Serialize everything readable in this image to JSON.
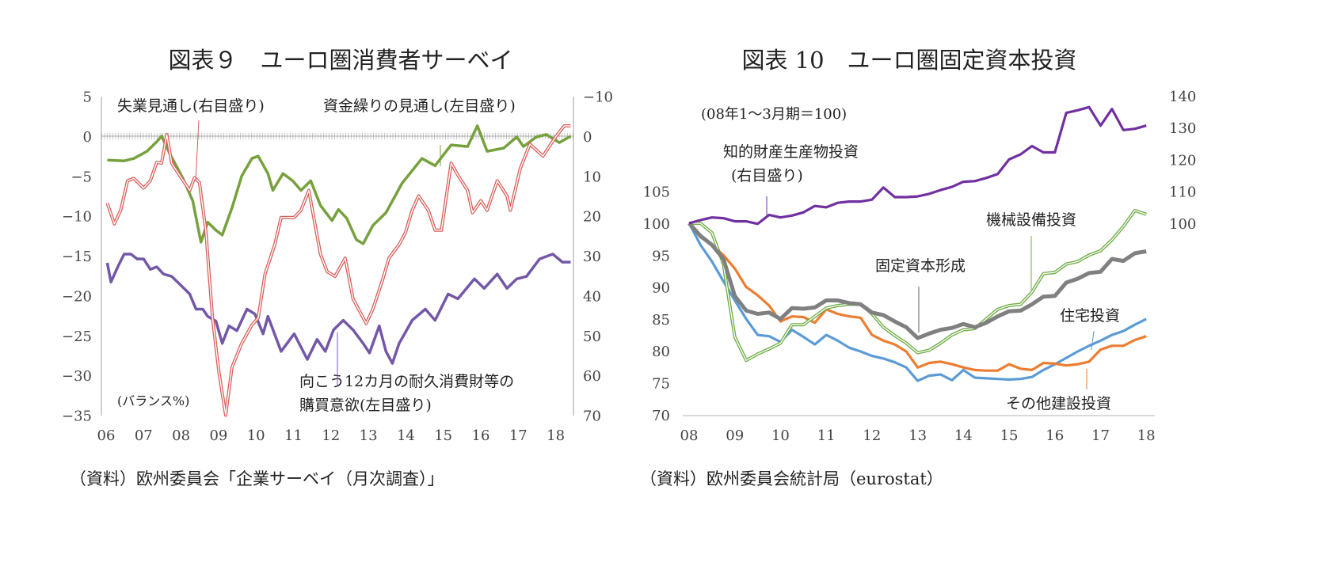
{
  "colors": {
    "green1": "#76a13d",
    "red1": "#d6615c",
    "purple1": "#7458a8",
    "purple2": "#7030a0",
    "gray2": "#808080",
    "green2": "#70ad47",
    "orange2": "#ed7d31",
    "blue2": "#5b9bd5",
    "axis": "#bfbfbf"
  },
  "chart_data": [
    {
      "type": "line",
      "title": "図表９　ユーロ圏消費者サーベイ",
      "source": "（資料）欧州委員会「企業サーベイ（月次調査）」",
      "unit_label": "(バランス%)",
      "x_ticks": [
        "06",
        "07",
        "08",
        "09",
        "10",
        "11",
        "12",
        "13",
        "14",
        "15",
        "16",
        "17",
        "18"
      ],
      "y_left": {
        "range": [
          -35,
          5
        ],
        "ticks": [
          5,
          0,
          -5,
          -10,
          -15,
          -20,
          -25,
          -30,
          -35
        ]
      },
      "y_right": {
        "range": [
          -10,
          70
        ],
        "inverted": true,
        "ticks": [
          -10,
          0,
          10,
          20,
          30,
          40,
          50,
          60,
          70
        ]
      },
      "grid": false,
      "zero_line": "dotted",
      "series": [
        {
          "name": "資金繰りの見通し(左目盛り)",
          "axis": "left",
          "color_key": "green1",
          "points": [
            [
              2006.03,
              -3.0
            ],
            [
              2006.48,
              -3.1
            ],
            [
              2006.74,
              -2.8
            ],
            [
              2007.09,
              -1.9
            ],
            [
              2007.35,
              -0.7
            ],
            [
              2007.48,
              0
            ],
            [
              2007.7,
              -2.2
            ],
            [
              2008.05,
              -5.3
            ],
            [
              2008.31,
              -8.1
            ],
            [
              2008.53,
              -13.3
            ],
            [
              2008.71,
              -10.8
            ],
            [
              2008.93,
              -11.8
            ],
            [
              2009.1,
              -12.4
            ],
            [
              2009.36,
              -9.0
            ],
            [
              2009.62,
              -5.0
            ],
            [
              2009.89,
              -2.8
            ],
            [
              2010.06,
              -2.5
            ],
            [
              2010.32,
              -4.7
            ],
            [
              2010.45,
              -6.8
            ],
            [
              2010.72,
              -4.7
            ],
            [
              2010.98,
              -5.6
            ],
            [
              2011.2,
              -6.8
            ],
            [
              2011.46,
              -5.6
            ],
            [
              2011.72,
              -8.7
            ],
            [
              2012.03,
              -10.6
            ],
            [
              2012.2,
              -9.2
            ],
            [
              2012.42,
              -10.3
            ],
            [
              2012.68,
              -13.0
            ],
            [
              2012.86,
              -13.5
            ],
            [
              2013.12,
              -11.2
            ],
            [
              2013.47,
              -9.6
            ],
            [
              2013.9,
              -5.9
            ],
            [
              2014.43,
              -2.8
            ],
            [
              2014.78,
              -3.7
            ],
            [
              2015.21,
              -1.1
            ],
            [
              2015.65,
              -1.3
            ],
            [
              2015.91,
              1.3
            ],
            [
              2016.17,
              -1.9
            ],
            [
              2016.61,
              -1.5
            ],
            [
              2016.96,
              -0.1
            ],
            [
              2017.14,
              -1.3
            ],
            [
              2017.48,
              -0.1
            ],
            [
              2017.75,
              0.2
            ],
            [
              2018.1,
              -0.8
            ],
            [
              2018.4,
              0
            ]
          ]
        },
        {
          "name": "失業見通し(右目盛り)",
          "axis": "right",
          "color_key": "red1",
          "points": [
            [
              2006.03,
              16.8
            ],
            [
              2006.22,
              22.0
            ],
            [
              2006.39,
              18.6
            ],
            [
              2006.57,
              11.2
            ],
            [
              2006.74,
              10.6
            ],
            [
              2007.0,
              13.0
            ],
            [
              2007.18,
              11.2
            ],
            [
              2007.35,
              6.6
            ],
            [
              2007.48,
              6.8
            ],
            [
              2007.62,
              -0.4
            ],
            [
              2007.75,
              6.8
            ],
            [
              2007.97,
              10.0
            ],
            [
              2008.23,
              13.6
            ],
            [
              2008.36,
              10.4
            ],
            [
              2008.49,
              11.6
            ],
            [
              2008.66,
              23.6
            ],
            [
              2008.84,
              45.6
            ],
            [
              2009.01,
              59.2
            ],
            [
              2009.19,
              70.0
            ],
            [
              2009.36,
              58.0
            ],
            [
              2009.62,
              52.0
            ],
            [
              2009.89,
              47.4
            ],
            [
              2010.06,
              45.6
            ],
            [
              2010.24,
              34.6
            ],
            [
              2010.5,
              27.2
            ],
            [
              2010.67,
              20.4
            ],
            [
              2011.02,
              20.4
            ],
            [
              2011.2,
              18.6
            ],
            [
              2011.41,
              13.6
            ],
            [
              2011.72,
              29.6
            ],
            [
              2011.9,
              34.0
            ],
            [
              2012.11,
              35.2
            ],
            [
              2012.38,
              30.6
            ],
            [
              2012.59,
              40.8
            ],
            [
              2012.94,
              47.0
            ],
            [
              2013.12,
              43.4
            ],
            [
              2013.38,
              36.0
            ],
            [
              2013.55,
              30.6
            ],
            [
              2013.82,
              27.2
            ],
            [
              2013.99,
              24.2
            ],
            [
              2014.17,
              18.6
            ],
            [
              2014.34,
              15.0
            ],
            [
              2014.6,
              18.6
            ],
            [
              2014.78,
              23.6
            ],
            [
              2014.95,
              23.6
            ],
            [
              2015.21,
              6.8
            ],
            [
              2015.39,
              9.8
            ],
            [
              2015.65,
              13.6
            ],
            [
              2015.78,
              19.2
            ],
            [
              2016.0,
              16.2
            ],
            [
              2016.17,
              18.6
            ],
            [
              2016.44,
              11.2
            ],
            [
              2016.7,
              15.0
            ],
            [
              2016.79,
              18.6
            ],
            [
              2017.05,
              8.2
            ],
            [
              2017.31,
              2.0
            ],
            [
              2017.66,
              5.0
            ],
            [
              2018.01,
              0
            ],
            [
              2018.23,
              -2.6
            ],
            [
              2018.4,
              -2.6
            ]
          ]
        },
        {
          "name": "向こう12カ月の耐久消費財等の購買意欲(左目盛り)",
          "axis": "left",
          "color_key": "purple1",
          "points": [
            [
              2006.03,
              -15.9
            ],
            [
              2006.13,
              -18.3
            ],
            [
              2006.31,
              -16.4
            ],
            [
              2006.48,
              -14.8
            ],
            [
              2006.66,
              -14.8
            ],
            [
              2006.83,
              -15.4
            ],
            [
              2007.0,
              -15.4
            ],
            [
              2007.18,
              -16.7
            ],
            [
              2007.35,
              -16.4
            ],
            [
              2007.53,
              -17.3
            ],
            [
              2007.75,
              -17.6
            ],
            [
              2007.97,
              -18.6
            ],
            [
              2008.23,
              -19.8
            ],
            [
              2008.4,
              -21.7
            ],
            [
              2008.58,
              -21.7
            ],
            [
              2008.71,
              -22.6
            ],
            [
              2008.93,
              -23.2
            ],
            [
              2009.1,
              -26.0
            ],
            [
              2009.28,
              -23.8
            ],
            [
              2009.49,
              -24.4
            ],
            [
              2009.76,
              -21.7
            ],
            [
              2009.97,
              -22.3
            ],
            [
              2010.19,
              -24.8
            ],
            [
              2010.32,
              -22.6
            ],
            [
              2010.67,
              -27.0
            ],
            [
              2011.02,
              -24.8
            ],
            [
              2011.37,
              -28.0
            ],
            [
              2011.63,
              -25.5
            ],
            [
              2011.85,
              -27.0
            ],
            [
              2012.07,
              -24.3
            ],
            [
              2012.33,
              -23.1
            ],
            [
              2012.59,
              -24.3
            ],
            [
              2012.86,
              -26.0
            ],
            [
              2013.03,
              -27.2
            ],
            [
              2013.29,
              -23.8
            ],
            [
              2013.47,
              -27.0
            ],
            [
              2013.64,
              -28.5
            ],
            [
              2013.82,
              -26.0
            ],
            [
              2014.17,
              -23.1
            ],
            [
              2014.52,
              -21.7
            ],
            [
              2014.78,
              -23.1
            ],
            [
              2015.13,
              -19.8
            ],
            [
              2015.39,
              -20.4
            ],
            [
              2015.83,
              -17.9
            ],
            [
              2016.09,
              -19.1
            ],
            [
              2016.44,
              -17.3
            ],
            [
              2016.7,
              -19.1
            ],
            [
              2016.96,
              -17.9
            ],
            [
              2017.22,
              -17.6
            ],
            [
              2017.57,
              -15.4
            ],
            [
              2017.92,
              -14.8
            ],
            [
              2018.18,
              -15.8
            ],
            [
              2018.4,
              -15.8
            ]
          ]
        }
      ],
      "annotations": {
        "unemployment": "失業見通し(右目盛り)",
        "funding": "資金繰りの見通し(左目盛り)",
        "durables_line1": "向こう12カ月の耐久消費財等の",
        "durables_line2": "購買意欲(左目盛り)"
      }
    },
    {
      "type": "line",
      "title": "図表 10　ユーロ圏固定資本投資",
      "source": "（資料）欧州委員会統計局（eurostat）",
      "unit_label": "(08年1～3月期＝100)",
      "x_ticks": [
        "08",
        "09",
        "10",
        "11",
        "12",
        "13",
        "14",
        "15",
        "16",
        "17",
        "18"
      ],
      "x_frequency": "quarterly",
      "x_start": "2008Q1",
      "y_left": {
        "range": [
          70,
          105
        ],
        "ticks": [
          105,
          100,
          95,
          90,
          85,
          80,
          75,
          70
        ]
      },
      "y_right": {
        "range": [
          100,
          140
        ],
        "ticks": [
          140,
          130,
          120,
          110,
          100
        ]
      },
      "grid": false,
      "series": [
        {
          "name": "知的財産生産物投資(右目盛り)",
          "axis": "right",
          "color_key": "purple2",
          "values": [
            100,
            101,
            101.8,
            101.6,
            100.6,
            100.6,
            99.8,
            102.6,
            101.8,
            102.4,
            103.4,
            105.4,
            105,
            106.4,
            106.8,
            106.8,
            107.4,
            111.2,
            108.2,
            108.2,
            108.4,
            109.2,
            110.4,
            111.4,
            113,
            113.2,
            114.2,
            115.4,
            120,
            121.6,
            124.2,
            122.2,
            122.2,
            134.6,
            135.4,
            136.4,
            130.6,
            135.8,
            129.2,
            129.6,
            130.6
          ]
        },
        {
          "name": "固定資本形成",
          "axis": "left",
          "color_key": "gray2",
          "values": [
            100,
            98.0,
            96.6,
            94.4,
            88.6,
            86.3,
            85.8,
            86.0,
            85.0,
            86.7,
            86.6,
            86.8,
            87.9,
            87.9,
            87.5,
            87.3,
            86.0,
            85.6,
            84.6,
            83.7,
            82.0,
            82.7,
            83.3,
            83.6,
            84.2,
            83.7,
            84.4,
            85.4,
            86.2,
            86.3,
            87.3,
            88.5,
            88.6,
            90.7,
            91.3,
            92.2,
            92.4,
            94.4,
            94.1,
            95.3,
            95.6
          ]
        },
        {
          "name": "機械設備投資",
          "axis": "left",
          "color_key": "green2",
          "values": [
            100,
            100,
            98.5,
            93.6,
            82.2,
            78.5,
            79.5,
            80.3,
            81.2,
            84.1,
            84.1,
            85.4,
            86.7,
            87.1,
            87.3,
            87.3,
            85.8,
            83.7,
            82.4,
            81.2,
            79.7,
            80.1,
            81.2,
            82.5,
            83.3,
            83.5,
            85.0,
            86.5,
            87.1,
            87.3,
            89.2,
            92.1,
            92.3,
            93.6,
            94.0,
            95.0,
            95.7,
            97.4,
            99.5,
            102.0,
            101.4
          ]
        },
        {
          "name": "その他建設投資",
          "axis": "left",
          "color_key": "orange2",
          "values": [
            100,
            97.8,
            96.6,
            95.0,
            92.9,
            90.0,
            88.7,
            87.1,
            84.6,
            85.4,
            85.3,
            84.4,
            86.5,
            85.8,
            85.4,
            85.2,
            82.5,
            81.6,
            81.0,
            79.9,
            77.4,
            78.1,
            78.3,
            77.9,
            77.4,
            77.0,
            76.9,
            76.9,
            77.9,
            77.2,
            77.0,
            78.1,
            78.0,
            77.7,
            77.9,
            78.3,
            80.2,
            80.8,
            80.8,
            81.7,
            82.3
          ]
        },
        {
          "name": "住宅投資",
          "axis": "left",
          "color_key": "blue2",
          "values": [
            100,
            96.6,
            94.0,
            90.9,
            87.9,
            85.0,
            82.5,
            82.3,
            81.4,
            83.3,
            82.2,
            81.0,
            82.5,
            81.6,
            80.5,
            79.9,
            79.2,
            78.8,
            78.2,
            77.4,
            75.3,
            76.1,
            76.3,
            75.4,
            77.0,
            75.8,
            75.7,
            75.6,
            75.5,
            75.6,
            75.9,
            77.0,
            77.9,
            78.9,
            79.9,
            80.8,
            81.6,
            82.5,
            83.1,
            84.1,
            85.0
          ]
        }
      ],
      "annotations": {
        "ip_line1": "知的財産生産物投資",
        "ip_line2": "(右目盛り)",
        "machinery": "機械設備投資",
        "gfcf": "固定資本形成",
        "housing": "住宅投資",
        "other": "その他建設投資"
      }
    }
  ]
}
